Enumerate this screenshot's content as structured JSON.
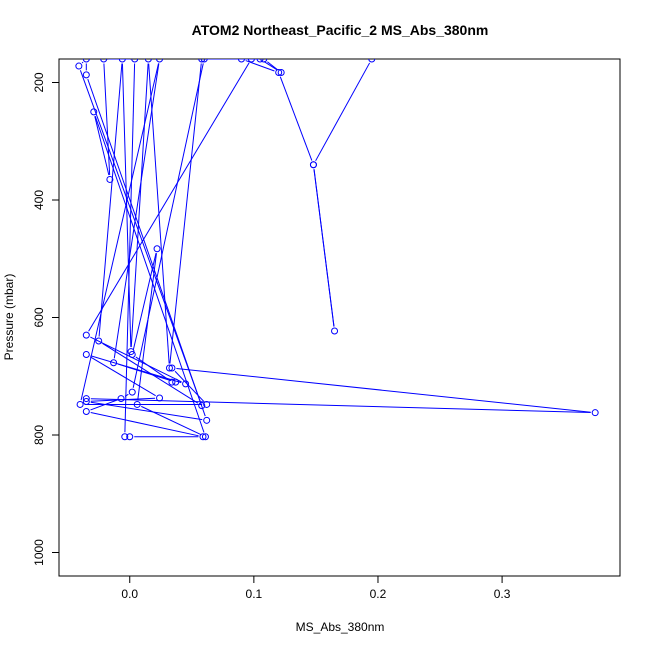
{
  "chart_data": {
    "type": "line",
    "title": "ATOM2 Northeast_Pacific_2 MS_Abs_380nm",
    "xlabel": "MS_Abs_380nm",
    "ylabel": "Pressure (mbar)",
    "xlim": [
      -0.057,
      0.395
    ],
    "ylim": [
      1040,
      160
    ],
    "y_inverted": true,
    "x_ticks": [
      0.0,
      0.1,
      0.2,
      0.3
    ],
    "x_tick_labels": [
      "0.0",
      "0.1",
      "0.2",
      "0.3"
    ],
    "y_ticks": [
      200,
      400,
      600,
      800,
      1000
    ],
    "y_tick_labels": [
      "200",
      "400",
      "600",
      "800",
      "1000"
    ],
    "grid": false,
    "marker": "open-circle",
    "series_color": "#0000ff",
    "series": [
      {
        "points": [
          [
            0.195,
            160
          ],
          [
            0.148,
            340
          ],
          [
            0.165,
            623
          ],
          [
            0.148,
            340
          ],
          [
            0.12,
            183
          ],
          [
            0.09,
            160
          ],
          [
            0.058,
            160
          ],
          [
            0.032,
            686
          ],
          [
            0.015,
            160
          ],
          [
            0.001,
            658
          ],
          [
            -0.006,
            160
          ],
          [
            -0.025,
            640
          ],
          [
            0.058,
            750
          ],
          [
            -0.041,
            172
          ],
          [
            -0.035,
            160
          ],
          [
            -0.035,
            187
          ],
          [
            0.062,
            775
          ],
          [
            -0.035,
            743
          ],
          [
            0.024,
            737
          ],
          [
            -0.035,
            663
          ],
          [
            0.045,
            713
          ],
          [
            -0.035,
            630
          ],
          [
            0.098,
            160
          ],
          [
            0.108,
            160
          ],
          [
            0.122,
            183
          ],
          [
            0.105,
            160
          ],
          [
            0.06,
            160
          ],
          [
            0.002,
            727
          ],
          [
            -0.007,
            738
          ],
          [
            -0.035,
            760
          ],
          [
            0.059,
            803
          ],
          [
            0.0,
            803
          ],
          [
            -0.004,
            803
          ],
          [
            0.004,
            160
          ],
          [
            -0.021,
            160
          ],
          [
            -0.016,
            365
          ],
          [
            -0.029,
            250
          ],
          [
            0.061,
            803
          ],
          [
            0.006,
            748
          ],
          [
            0.022,
            483
          ],
          [
            0.002,
            663
          ],
          [
            0.034,
            710
          ],
          [
            0.037,
            710
          ],
          [
            -0.013,
            677
          ],
          [
            0.024,
            160
          ],
          [
            -0.04,
            748
          ],
          [
            0.062,
            748
          ],
          [
            0.034,
            686
          ],
          [
            0.375,
            762
          ],
          [
            -0.035,
            738
          ]
        ]
      }
    ]
  }
}
